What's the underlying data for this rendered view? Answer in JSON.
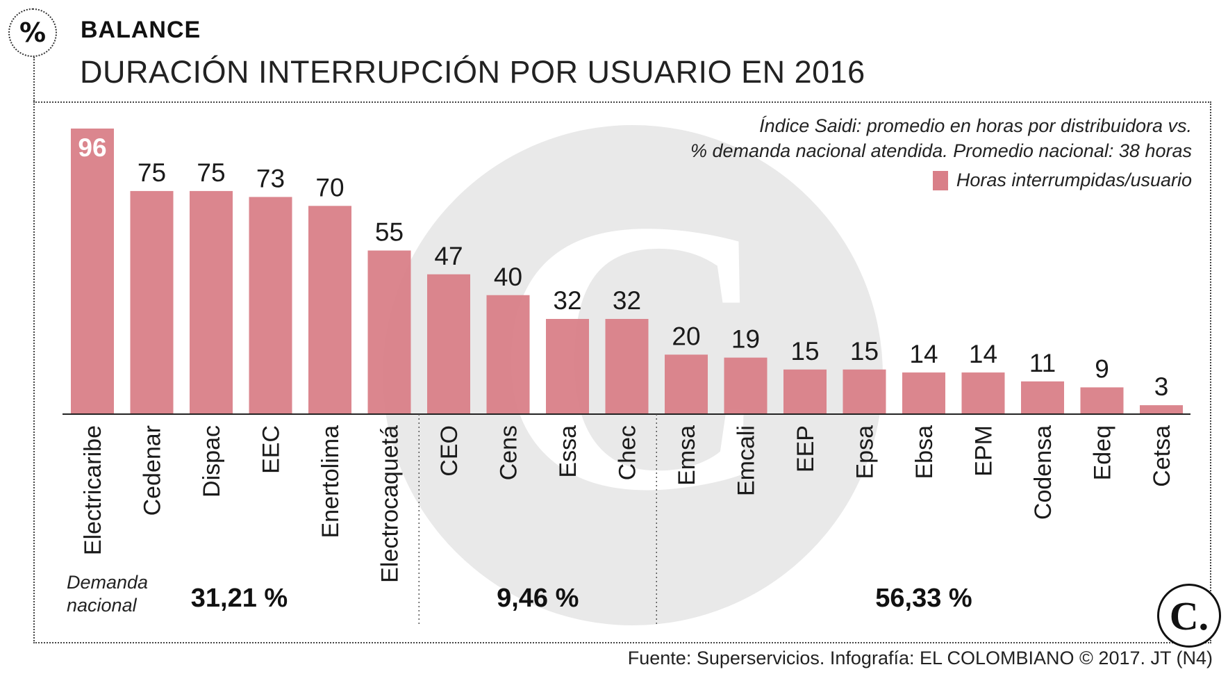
{
  "header": {
    "badge_symbol": "%",
    "section": "BALANCE",
    "title": "DURACIÓN INTERRUPCIÓN POR USUARIO EN 2016"
  },
  "note": {
    "line1": "Índice Saidi: promedio en horas por distribuidora vs.",
    "line2": "% demanda nacional atendida. Promedio nacional: 38 horas"
  },
  "legend": {
    "label": "Horas interrumpidas/usuario"
  },
  "demand": {
    "label_line1": "Demanda",
    "label_line2": "nacional",
    "groups": [
      {
        "value": "31,21 %"
      },
      {
        "value": "9,46 %"
      },
      {
        "value": "56,33 %"
      }
    ]
  },
  "source": "Fuente: Superservicios. Infografía: EL COLOMBIANO © 2017. JT (N4)",
  "logo_text": "C.",
  "colors": {
    "bar": "#d97f88",
    "bar_dark": "#c96f78",
    "watermark": "#e9e9e9"
  },
  "chart_data": {
    "type": "bar",
    "title": "DURACIÓN INTERRUPCIÓN POR USUARIO EN 2016",
    "xlabel": "",
    "ylabel": "Horas interrumpidas/usuario",
    "ylim": [
      0,
      100
    ],
    "grid": false,
    "legend_position": "top-right",
    "categories": [
      "Electricaribe",
      "Cedenar",
      "Dispac",
      "EEC",
      "Enertolima",
      "Electrocaquetá",
      "CEO",
      "Cens",
      "Essa",
      "Chec",
      "Emsa",
      "Emcali",
      "EEP",
      "Epsa",
      "Ebsa",
      "EPM",
      "Codensa",
      "Edeq",
      "Cetsa"
    ],
    "series": [
      {
        "name": "Horas interrumpidas/usuario",
        "values": [
          96,
          75,
          75,
          73,
          70,
          55,
          47,
          40,
          32,
          32,
          20,
          19,
          15,
          15,
          14,
          14,
          11,
          9,
          3
        ]
      }
    ],
    "groups": [
      {
        "from": 0,
        "to": 5,
        "demand": "31,21 %"
      },
      {
        "from": 6,
        "to": 9,
        "demand": "9,46 %"
      },
      {
        "from": 10,
        "to": 18,
        "demand": "56,33 %"
      }
    ]
  }
}
